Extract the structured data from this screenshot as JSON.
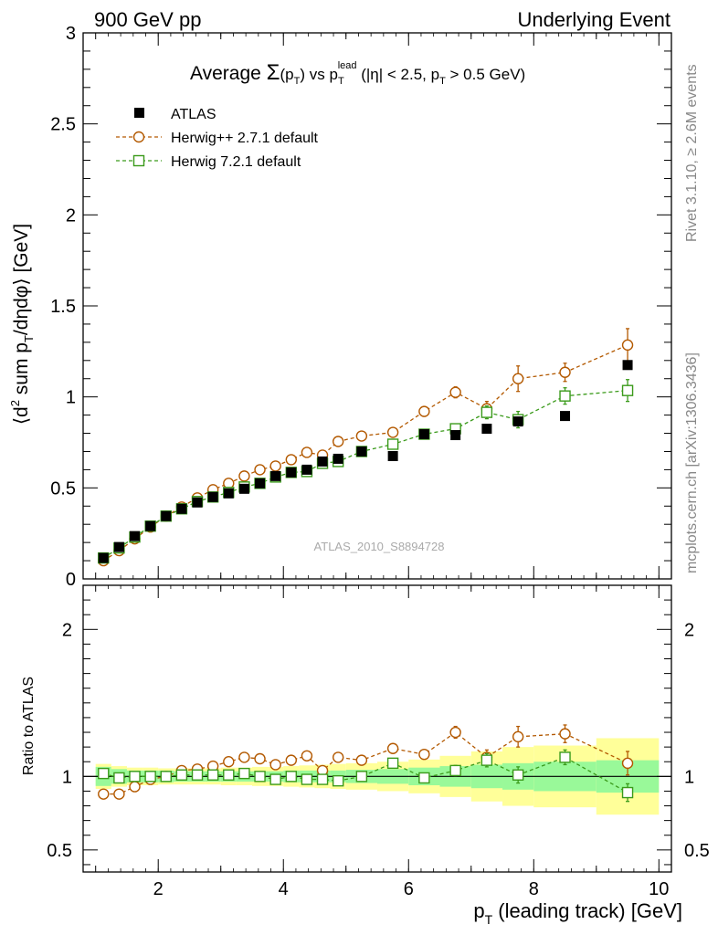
{
  "header": {
    "left": "900 GeV pp",
    "right": "Underlying Event"
  },
  "side_labels": {
    "rivet": "Rivet 3.1.10, ≥ 2.6M events",
    "mcplots": "mcplots.cern.ch [arXiv:1306.3436]"
  },
  "watermark": "ATLAS_2010_S8894728",
  "title": {
    "prefix": "Average ",
    "sigma": "Σ",
    "p_open": "(p",
    "p_sub": "T",
    "p_close": ")",
    "vs": " vs p",
    "vs_sub": "T",
    "vs_sup": "lead",
    "cuts_a": " (|η| < 2.5, p",
    "cuts_sub": "T",
    "cuts_b": " > 0.5 GeV)"
  },
  "ylabel": {
    "open": "⟨d",
    "sup2": "2",
    "mid": " sum p",
    "sub": "T",
    "close": "/dηdφ⟩ [GeV]"
  },
  "xlabel": {
    "p": "p",
    "sub": "T",
    "rest": " (leading track) [GeV]"
  },
  "ratio_label": "Ratio to ATLAS",
  "colors": {
    "atlas": "#000000",
    "herwigpp": "#b35900",
    "herwig7": "#3a9a1a",
    "band_inner": "#99f999",
    "band_outer": "#ffff99"
  },
  "chart_data": [
    {
      "type": "scatter",
      "panel": "main",
      "xlim": [
        0.8,
        10.2
      ],
      "ylim": [
        0,
        3
      ],
      "yticks": [
        "0",
        "0.5",
        "1",
        "1.5",
        "2",
        "2.5",
        "3"
      ],
      "xticks": [
        "2",
        "4",
        "6",
        "8",
        "10"
      ],
      "legend_position": "top-left",
      "x": [
        1.125,
        1.375,
        1.625,
        1.875,
        2.125,
        2.375,
        2.625,
        2.875,
        3.125,
        3.375,
        3.625,
        3.875,
        4.125,
        4.375,
        4.625,
        4.875,
        5.25,
        5.75,
        6.25,
        6.75,
        7.25,
        7.75,
        8.5,
        9.5
      ],
      "series": [
        {
          "name": "ATLAS",
          "marker": "filled-square",
          "values": [
            0.115,
            0.175,
            0.235,
            0.29,
            0.345,
            0.385,
            0.42,
            0.45,
            0.47,
            0.495,
            0.525,
            0.565,
            0.585,
            0.6,
            0.645,
            0.66,
            0.7,
            0.675,
            0.795,
            0.79,
            0.825,
            0.865,
            0.895,
            1.175
          ]
        },
        {
          "name": "Herwig++ 2.7.1 default",
          "marker": "open-circle",
          "values": [
            0.1,
            0.155,
            0.22,
            0.285,
            0.345,
            0.395,
            0.445,
            0.49,
            0.525,
            0.565,
            0.6,
            0.62,
            0.655,
            0.695,
            0.68,
            0.755,
            0.785,
            0.805,
            0.92,
            1.025,
            0.935,
            1.1,
            1.135,
            1.285
          ],
          "errors": [
            0.005,
            0.005,
            0.005,
            0.006,
            0.006,
            0.007,
            0.007,
            0.008,
            0.008,
            0.009,
            0.009,
            0.01,
            0.01,
            0.011,
            0.012,
            0.012,
            0.014,
            0.016,
            0.02,
            0.03,
            0.04,
            0.07,
            0.05,
            0.09
          ]
        },
        {
          "name": "Herwig 7.2.1 default",
          "marker": "open-square",
          "values": [
            0.115,
            0.17,
            0.23,
            0.29,
            0.345,
            0.385,
            0.425,
            0.45,
            0.475,
            0.505,
            0.525,
            0.56,
            0.585,
            0.59,
            0.635,
            0.645,
            0.7,
            0.74,
            0.795,
            0.825,
            0.915,
            0.875,
            1.005,
            1.035
          ],
          "errors": [
            0.005,
            0.005,
            0.005,
            0.006,
            0.006,
            0.007,
            0.007,
            0.008,
            0.008,
            0.009,
            0.009,
            0.01,
            0.01,
            0.011,
            0.012,
            0.012,
            0.014,
            0.016,
            0.02,
            0.025,
            0.035,
            0.045,
            0.045,
            0.06
          ]
        }
      ]
    },
    {
      "type": "scatter",
      "panel": "ratio",
      "xlim": [
        0.8,
        10.2
      ],
      "ylim": [
        0.35,
        2.3
      ],
      "yticks": [
        "0.5",
        "1",
        "2"
      ],
      "xticks": [
        "2",
        "4",
        "6",
        "8",
        "10"
      ],
      "bins": [
        [
          1.0,
          1.25
        ],
        [
          1.25,
          1.5
        ],
        [
          1.5,
          1.75
        ],
        [
          1.75,
          2.0
        ],
        [
          2.0,
          2.25
        ],
        [
          2.25,
          2.5
        ],
        [
          2.5,
          2.75
        ],
        [
          2.75,
          3.0
        ],
        [
          3.0,
          3.25
        ],
        [
          3.25,
          3.5
        ],
        [
          3.5,
          3.75
        ],
        [
          3.75,
          4.0
        ],
        [
          4.0,
          4.25
        ],
        [
          4.25,
          4.5
        ],
        [
          4.5,
          4.75
        ],
        [
          4.75,
          5.0
        ],
        [
          5.0,
          5.5
        ],
        [
          5.5,
          6.0
        ],
        [
          6.0,
          6.5
        ],
        [
          6.5,
          7.0
        ],
        [
          7.0,
          7.5
        ],
        [
          7.5,
          8.0
        ],
        [
          8.0,
          9.0
        ],
        [
          9.0,
          10.0
        ]
      ],
      "band_inner": [
        0.065,
        0.05,
        0.04,
        0.04,
        0.04,
        0.035,
        0.035,
        0.035,
        0.035,
        0.035,
        0.035,
        0.035,
        0.04,
        0.04,
        0.04,
        0.04,
        0.045,
        0.05,
        0.06,
        0.07,
        0.08,
        0.09,
        0.1,
        0.11
      ],
      "band_outer": [
        0.085,
        0.07,
        0.06,
        0.06,
        0.055,
        0.055,
        0.055,
        0.055,
        0.06,
        0.06,
        0.065,
        0.065,
        0.07,
        0.075,
        0.08,
        0.085,
        0.09,
        0.1,
        0.115,
        0.14,
        0.17,
        0.2,
        0.21,
        0.26
      ],
      "x": [
        1.125,
        1.375,
        1.625,
        1.875,
        2.125,
        2.375,
        2.625,
        2.875,
        3.125,
        3.375,
        3.625,
        3.875,
        4.125,
        4.375,
        4.625,
        4.875,
        5.25,
        5.75,
        6.25,
        6.75,
        7.25,
        7.75,
        8.5,
        9.5
      ],
      "series": [
        {
          "name": "Herwig++ 2.7.1 default",
          "marker": "open-circle",
          "values": [
            0.88,
            0.88,
            0.93,
            0.98,
            1.0,
            1.04,
            1.05,
            1.07,
            1.1,
            1.13,
            1.12,
            1.08,
            1.11,
            1.14,
            1.04,
            1.13,
            1.11,
            1.19,
            1.15,
            1.3,
            1.13,
            1.27,
            1.29,
            1.09
          ],
          "errors": [
            0.01,
            0.01,
            0.01,
            0.01,
            0.01,
            0.01,
            0.01,
            0.01,
            0.01,
            0.01,
            0.01,
            0.01,
            0.01,
            0.012,
            0.012,
            0.012,
            0.015,
            0.02,
            0.025,
            0.04,
            0.05,
            0.07,
            0.06,
            0.08
          ]
        },
        {
          "name": "Herwig 7.2.1 default",
          "marker": "open-square",
          "values": [
            1.02,
            0.99,
            1.0,
            1.0,
            1.0,
            1.01,
            1.01,
            1.01,
            1.01,
            1.02,
            1.0,
            0.98,
            1.0,
            0.98,
            0.98,
            0.97,
            1.0,
            1.09,
            0.99,
            1.04,
            1.11,
            1.01,
            1.13,
            0.89
          ],
          "errors": [
            0.01,
            0.01,
            0.01,
            0.01,
            0.01,
            0.01,
            0.01,
            0.01,
            0.01,
            0.01,
            0.01,
            0.01,
            0.01,
            0.012,
            0.012,
            0.012,
            0.015,
            0.02,
            0.025,
            0.035,
            0.045,
            0.055,
            0.05,
            0.06
          ]
        }
      ]
    }
  ]
}
